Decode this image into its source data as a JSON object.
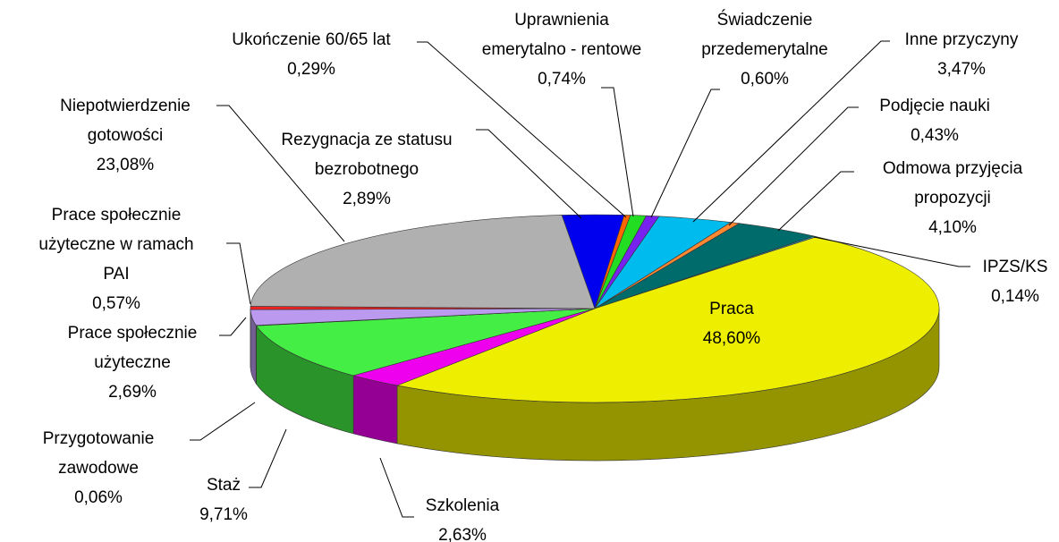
{
  "chart_data": {
    "type": "pie",
    "categories": [
      "Rezygnacja ze statusu\nbezrobotnego",
      "Ukończenie 60/65 lat",
      "Uprawnienia\nemerytalno - rentowe",
      "Świadczenie\nprzedemerytalne",
      "Inne przyczyny",
      "Podjęcie nauki",
      "Odmowa przyjęcia\npropozycji",
      "IPZS/KS",
      "Praca",
      "Szkolenia",
      "Staż",
      "Przygotowanie\nzawodowe",
      "Prace społecznie\nużyteczne",
      "Prace społecznie\nużyteczne w ramach\nPAI",
      "Niepotwierdzenie\ngotowości"
    ],
    "values": [
      2.89,
      0.29,
      0.74,
      0.6,
      3.47,
      0.43,
      4.1,
      0.14,
      48.6,
      2.63,
      9.71,
      0.06,
      2.69,
      0.57,
      23.08
    ],
    "value_labels": [
      "2,89%",
      "0,29%",
      "0,74%",
      "0,60%",
      "3,47%",
      "0,43%",
      "4,10%",
      "0,14%",
      "48,60%",
      "2,63%",
      "9,71%",
      "0,06%",
      "2,69%",
      "0,57%",
      "23,08%"
    ],
    "colors": [
      "#0000ee",
      "#ff6600",
      "#22dd22",
      "#7722ee",
      "#00bbee",
      "#ff8833",
      "#006b6b",
      "#33aadd",
      "#eeee00",
      "#ee00ee",
      "#44ee44",
      "#88ff88",
      "#bb99ee",
      "#ee2222",
      "#b0b0b0"
    ]
  }
}
